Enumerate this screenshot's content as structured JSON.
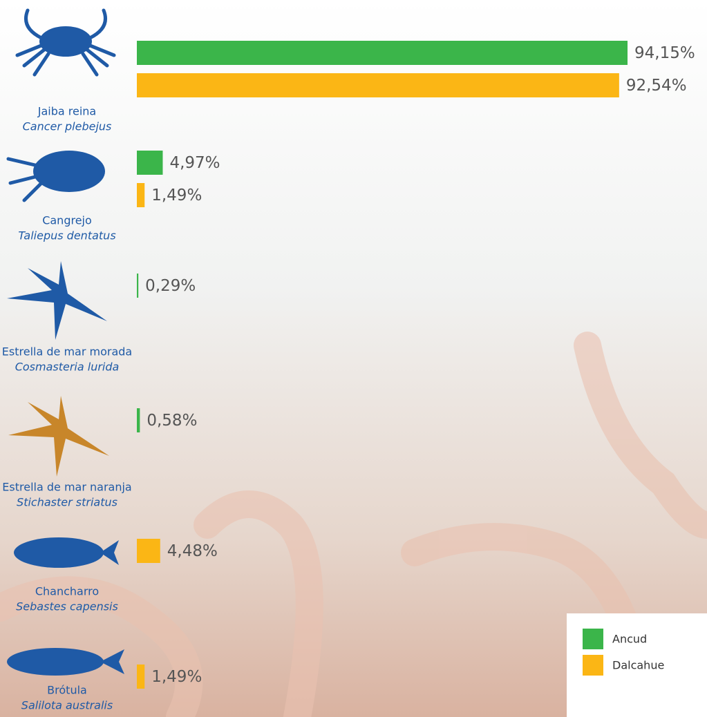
{
  "chart_data": {
    "type": "bar",
    "categories": [
      "Jaiba reina",
      "Cangrejo",
      "Estrella de mar morada",
      "Estrella de mar naranja",
      "Chancharro",
      "Brótula"
    ],
    "scientific_names": [
      "Cancer plebejus",
      "Taliepus dentatus",
      "Cosmasteria lurida",
      "Stichaster striatus",
      "Sebastes capensis",
      "Salilota australis"
    ],
    "series": [
      {
        "name": "Ancud",
        "color": "#3bb54a",
        "values": [
          94.15,
          4.97,
          0.29,
          0.58,
          null,
          null
        ],
        "value_labels": [
          "94,15%",
          "4,97%",
          "0,29%",
          "0,58%",
          null,
          null
        ]
      },
      {
        "name": "Dalcahue",
        "color": "#fbb615",
        "values": [
          92.54,
          1.49,
          null,
          null,
          4.48,
          1.49
        ],
        "value_labels": [
          "92,54%",
          "1,49%",
          null,
          null,
          "4,48%",
          "1,49%"
        ]
      }
    ],
    "legend": "bottom-right"
  }
}
